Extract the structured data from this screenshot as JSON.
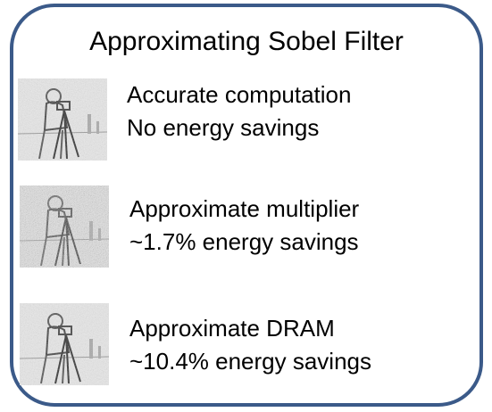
{
  "title": "Approximating Sobel Filter",
  "items": [
    {
      "line1": "Accurate computation",
      "line2": "No energy savings"
    },
    {
      "line1": "Approximate multiplier",
      "line2": "~1.7% energy savings"
    },
    {
      "line1": "Approximate DRAM",
      "line2": "~10.4% energy savings"
    }
  ]
}
